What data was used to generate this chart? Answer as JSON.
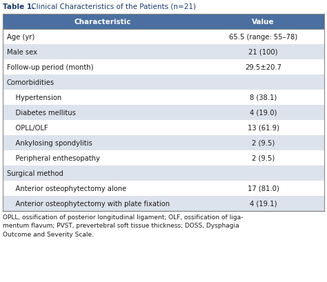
{
  "title_bold": "Table 1.",
  "title_rest": " Clinical Characteristics of the Patients (n=21)",
  "header": [
    "Characteristic",
    "Value"
  ],
  "rows": [
    {
      "char": "Age (yr)",
      "val": "65.5 (range: 55–78)",
      "indent": 0,
      "bg": "white"
    },
    {
      "char": "Male sex",
      "val": "21 (100)",
      "indent": 0,
      "bg": "#dde3ec"
    },
    {
      "char": "Follow-up period (month)",
      "val": "29.5±20.7",
      "indent": 0,
      "bg": "white"
    },
    {
      "char": "Comorbidities",
      "val": "",
      "indent": 0,
      "bg": "#dde3ec"
    },
    {
      "char": "    Hypertension",
      "val": "8 (38.1)",
      "indent": 1,
      "bg": "white"
    },
    {
      "char": "    Diabetes mellitus",
      "val": "4 (19.0)",
      "indent": 1,
      "bg": "#dde3ec"
    },
    {
      "char": "    OPLL/OLF",
      "val": "13 (61.9)",
      "indent": 1,
      "bg": "white"
    },
    {
      "char": "    Ankylosing spondylitis",
      "val": "2 (9.5)",
      "indent": 1,
      "bg": "#dde3ec"
    },
    {
      "char": "    Peripheral enthesopathy",
      "val": "2 (9.5)",
      "indent": 1,
      "bg": "white"
    },
    {
      "char": "Surgical method",
      "val": "",
      "indent": 0,
      "bg": "#dde3ec"
    },
    {
      "char": "    Anterior osteophytectomy alone",
      "val": "17 (81.0)",
      "indent": 1,
      "bg": "white"
    },
    {
      "char": "    Anterior osteophytectomy with plate fixation",
      "val": "4 (19.1)",
      "indent": 1,
      "bg": "#dde3ec"
    }
  ],
  "footnote": "OPLL, ossification of posterior longitudinal ligament; OLF, ossification of liga-\nmentum flavum; PVST, prevertebral soft tissue thickness; DOSS, Dysphagia\nOutcome and Severity Scale.",
  "header_bg": "#4a6fa0",
  "header_text_color": "white",
  "title_color": "#1a1a1a",
  "border_color": "#888888",
  "text_color": "#1a1a1a",
  "fig_width": 4.74,
  "fig_height": 4.1,
  "dpi": 100
}
